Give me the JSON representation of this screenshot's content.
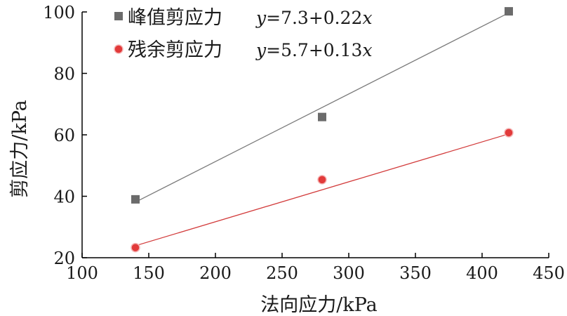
{
  "chart_data": {
    "type": "scatter",
    "xlabel": "法向应力/kPa",
    "ylabel": "剪应力/kPa",
    "xlim": [
      100,
      450
    ],
    "ylim": [
      20,
      100
    ],
    "xticks": [
      100,
      150,
      200,
      250,
      300,
      350,
      400,
      450
    ],
    "yticks": [
      20,
      40,
      60,
      80,
      100
    ],
    "xtick_labels": [
      "100",
      "150",
      "200",
      "250",
      "300",
      "350",
      "400",
      "450"
    ],
    "ytick_labels": [
      "20",
      "40",
      "60",
      "80",
      "100"
    ],
    "grid": false,
    "legend_position": "top-left",
    "series": [
      {
        "name": "峰值剪应力",
        "marker": "square",
        "color": "#6b6b6b",
        "line_color": "#7a7a7a",
        "x": [
          140,
          280,
          420
        ],
        "y": [
          39.0,
          65.8,
          100.2
        ],
        "fit": {
          "intercept": 7.3,
          "slope": 0.22,
          "equation_prefix": "y",
          "equation_rest": "=7.3+0.22",
          "equation_suffix": "x"
        }
      },
      {
        "name": "残余剪应力",
        "marker": "circle",
        "color": "#e23a3a",
        "line_color": "#d23a3a",
        "x": [
          140,
          280,
          420
        ],
        "y": [
          23.3,
          45.4,
          60.7
        ],
        "fit": {
          "intercept": 5.7,
          "slope": 0.13,
          "equation_prefix": "y",
          "equation_rest": "=5.7+0.13",
          "equation_suffix": "x"
        }
      }
    ]
  }
}
